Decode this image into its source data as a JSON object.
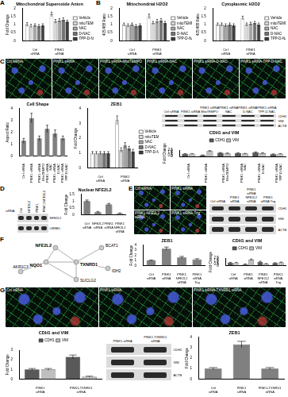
{
  "panel_letters": [
    "A",
    "B",
    "C",
    "D",
    "E",
    "F",
    "G"
  ],
  "chart_data": [
    {
      "type": "bar",
      "title": "Mitochondrial Superoxide Anion",
      "y_label": "Fold Change",
      "categories": [
        "Ctrl siRNA",
        "PINK1 siRNA"
      ],
      "series": [
        {
          "name": "Vehicle",
          "color": "#ffffff",
          "values": [
            1.0,
            1.62
          ],
          "errors": [
            0.12,
            0.15
          ]
        },
        {
          "name": "mitoTEMPO",
          "color": "#d9d9d9",
          "values": [
            0.92,
            1.2
          ],
          "errors": [
            0.1,
            0.12
          ]
        },
        {
          "name": "NAC",
          "color": "#a6a6a6",
          "values": [
            0.95,
            1.25
          ],
          "errors": [
            0.1,
            0.12
          ]
        },
        {
          "name": "D-NAC",
          "color": "#737373",
          "values": [
            0.9,
            1.3
          ],
          "errors": [
            0.1,
            0.12
          ]
        },
        {
          "name": "TPP-D-NAC",
          "color": "#404040",
          "values": [
            0.95,
            1.18
          ],
          "errors": [
            0.1,
            0.1
          ]
        }
      ],
      "ylim": [
        0,
        2
      ],
      "yticks": [
        0,
        0.5,
        1,
        1.5,
        2
      ],
      "grid": false,
      "legend": "right"
    },
    {
      "type": "bar",
      "title": "Mitochondrial H2O2",
      "y_label": "405/488 Ratio",
      "categories": [
        "Ctrl siRNA",
        "PINK1 siRNA"
      ],
      "series": [
        {
          "name": "Vehicle",
          "color": "#ffffff",
          "values": [
            1.0,
            1.5
          ],
          "errors": [
            0.1,
            0.15
          ]
        },
        {
          "name": "mitoTEMPO",
          "color": "#d9d9d9",
          "values": [
            0.95,
            1.1
          ],
          "errors": [
            0.1,
            0.1
          ]
        },
        {
          "name": "NAC",
          "color": "#a6a6a6",
          "values": [
            1.0,
            1.2
          ],
          "errors": [
            0.1,
            0.12
          ]
        },
        {
          "name": "D-NAC",
          "color": "#737373",
          "values": [
            0.9,
            1.25
          ],
          "errors": [
            0.1,
            0.12
          ]
        },
        {
          "name": "TPP-D-NAC",
          "color": "#404040",
          "values": [
            0.95,
            1.1
          ],
          "errors": [
            0.1,
            0.1
          ]
        }
      ],
      "ylim": [
        0,
        2
      ],
      "yticks": [
        0,
        0.5,
        1,
        1.5,
        2
      ],
      "grid": false,
      "legend": "right"
    },
    {
      "type": "bar",
      "title": "Cytoplasmic H2O2",
      "y_label": "405/488 Ratio",
      "categories": [
        "Ctrl siRNA",
        "PINK1 siRNA"
      ],
      "series": [
        {
          "name": "Vehicle",
          "color": "#ffffff",
          "values": [
            1.0,
            1.4
          ],
          "errors": [
            0.1,
            0.12
          ]
        },
        {
          "name": "mitoTEMPO",
          "color": "#d9d9d9",
          "values": [
            1.0,
            1.0
          ],
          "errors": [
            0.1,
            0.1
          ]
        },
        {
          "name": "NAC",
          "color": "#a6a6a6",
          "values": [
            0.95,
            1.05
          ],
          "errors": [
            0.1,
            0.1
          ]
        },
        {
          "name": "D-NAC",
          "color": "#737373",
          "values": [
            1.0,
            1.1
          ],
          "errors": [
            0.1,
            0.1
          ]
        },
        {
          "name": "TPP-D-NAC",
          "color": "#404040",
          "values": [
            0.95,
            1.0
          ],
          "errors": [
            0.1,
            0.1
          ]
        }
      ],
      "ylim": [
        0,
        2
      ],
      "yticks": [
        0,
        0.5,
        1,
        1.5,
        2
      ],
      "grid": false,
      "legend": "right"
    },
    {
      "type": "bar",
      "title": "Cell Shape",
      "y_label": "Aspect Ratio",
      "categories": [
        "Ctrl siRNA",
        "PINK1 siRNA",
        "PINK1 siRNA MitoTEMPO",
        "PINK1 siRNA NAC",
        "PINK1 siRNA D-NAC",
        "PINK1 siRNA TPP-D-NAC"
      ],
      "values": [
        1.3,
        3.2,
        1.5,
        2.3,
        1.9,
        1.5
      ],
      "errors": [
        0.2,
        0.4,
        0.2,
        0.3,
        0.3,
        0.2
      ],
      "color": "#808080",
      "ylim": [
        0,
        4
      ],
      "yticks": [
        0,
        1,
        2,
        3,
        4
      ],
      "grid": false
    },
    {
      "type": "bar",
      "title": "ZEB1",
      "y_label": "Fold Change",
      "categories": [
        "Ctrl siRNA",
        "PINK1 siRNA"
      ],
      "series": [
        {
          "name": "Vehicle",
          "color": "#ffffff",
          "values": [
            1.0,
            3.2
          ],
          "errors": [
            0.1,
            0.3
          ]
        },
        {
          "name": "mitoTEMPO",
          "color": "#d9d9d9",
          "values": [
            1.0,
            1.2
          ],
          "errors": [
            0.1,
            0.15
          ]
        },
        {
          "name": "NAC",
          "color": "#a6a6a6",
          "values": [
            1.0,
            1.5
          ],
          "errors": [
            0.1,
            0.2
          ]
        },
        {
          "name": "D-NAC",
          "color": "#737373",
          "values": [
            1.0,
            1.3
          ],
          "errors": [
            0.1,
            0.15
          ]
        },
        {
          "name": "TPP-D-NAC",
          "color": "#404040",
          "values": [
            1.0,
            1.1
          ],
          "errors": [
            0.1,
            0.15
          ]
        }
      ],
      "ylim": [
        0,
        4
      ],
      "yticks": [
        0,
        1,
        2,
        3,
        4
      ],
      "grid": false,
      "legend": "right"
    },
    {
      "type": "bar",
      "title": "CDH1 and VIM",
      "y_label": "Fold Change",
      "categories": [
        "Ctrl siRNA",
        "PINK1 siRNA",
        "PINK1 siRNA MitoTEMPO",
        "PINK1 siRNA NAC",
        "PINK1 siRNA D-NAC",
        "PINK1 siRNA TPP-D-NAC"
      ],
      "series": [
        {
          "name": "CDH1",
          "color": "#595959",
          "values": [
            1.0,
            0.5,
            1.4,
            1.3,
            1.6,
            0.9
          ],
          "errors": [
            0.1,
            0.1,
            0.15,
            0.15,
            0.2,
            0.1
          ]
        },
        {
          "name": "VIM",
          "color": "#bfbfbf",
          "values": [
            1.0,
            2.1,
            1.2,
            1.1,
            1.3,
            1.0
          ],
          "errors": [
            0.1,
            0.2,
            0.15,
            0.1,
            0.15,
            0.1
          ]
        }
      ],
      "ylim": [
        0,
        2.5
      ],
      "yticks": [
        0,
        0.5,
        1,
        1.5,
        2,
        2.5
      ],
      "grid": false,
      "legend": "top"
    },
    {
      "type": "bar",
      "title": "Nuclear NFE2L2",
      "y_label": "Fold Change",
      "categories": [
        "Ctrl siRNA",
        "NFE2L2 siRNA",
        "PINK1 siRNA",
        "PINK1 NFE2L2 siRNA"
      ],
      "values": [
        1.0,
        0.2,
        0.75,
        0.1
      ],
      "errors": [
        0.08,
        0.05,
        0.08,
        0.04
      ],
      "color": "#808080",
      "ylim": [
        0,
        1.5
      ],
      "yticks": [
        0,
        0.5,
        1,
        1.5
      ],
      "grid": false
    },
    {
      "type": "bar",
      "title": "ZEB1",
      "y_label": "Fold Change",
      "categories": [
        "Ctrl siRNA",
        "PINK1 siRNA",
        "PINK1 NFE2L2 siRNA",
        "PINK1 siRNA Trig"
      ],
      "values": [
        1.0,
        3.3,
        1.6,
        1.2
      ],
      "errors": [
        0.1,
        0.3,
        0.2,
        0.15
      ],
      "color": "#808080",
      "ylim": [
        0,
        4
      ],
      "yticks": [
        0,
        1,
        2,
        3,
        4
      ],
      "grid": false
    },
    {
      "type": "bar",
      "title": "CDH1 and VIM",
      "y_label": "Fold Change",
      "categories": [
        "Ctrl siRNA",
        "PINK1 siRNA",
        "PINK1 NFE2L2 siRNA",
        "PINK1 siRNA Trig"
      ],
      "series": [
        {
          "name": "CDH1",
          "color": "#595959",
          "values": [
            1.0,
            0.5,
            1.3,
            0.9
          ],
          "errors": [
            0.1,
            0.1,
            0.15,
            0.1
          ]
        },
        {
          "name": "VIM",
          "color": "#bfbfbf",
          "values": [
            1.0,
            2.0,
            0.6,
            1.1
          ],
          "errors": [
            0.1,
            0.2,
            0.1,
            0.1
          ]
        }
      ],
      "ylim": [
        0,
        2.5
      ],
      "yticks": [
        0,
        0.5,
        1,
        1.5,
        2,
        2.5
      ],
      "grid": false,
      "legend": "top"
    },
    {
      "type": "bar",
      "title": "CDH1 and VIM",
      "y_label": "Fold Change",
      "categories": [
        "PINK1 siRNA",
        "PINK1-TXNRD1 siRNA"
      ],
      "series": [
        {
          "name": "CDH1",
          "color": "#595959",
          "values": [
            1.0,
            2.3
          ],
          "errors": [
            0.1,
            0.2
          ]
        },
        {
          "name": "VIM",
          "color": "#bfbfbf",
          "values": [
            1.0,
            0.25
          ],
          "errors": [
            0.1,
            0.05
          ]
        }
      ],
      "ylim": [
        0,
        3
      ],
      "yticks": [
        0,
        1,
        2,
        3
      ],
      "grid": false,
      "legend": "top"
    },
    {
      "type": "bar",
      "title": "ZEB1",
      "y_label": "Fold Change",
      "categories": [
        "Ctrl siRNA",
        "PINK1 siRNA",
        "PINK1-TXNRD1 siRNA"
      ],
      "values": [
        1.0,
        3.3,
        1.0
      ],
      "errors": [
        0.1,
        0.3,
        0.1
      ],
      "color": "#808080",
      "ylim": [
        0,
        4
      ],
      "yticks": [
        0,
        1,
        2,
        3,
        4
      ],
      "grid": false
    }
  ],
  "micrographs": [
    [
      "Ctrl siRNA",
      "PINK1 siRNA",
      "PINK1 siRNA-MitoTEMPO",
      "PINK1 siRNA-NAC",
      "PINK1 siRNA-D-NAC",
      "PINK1 siRNA-TPP-D-NAC"
    ],
    [
      "Ctrl siRNA",
      "PINK1 siRNA",
      "PINK1-NFE2L2 siRNA",
      "PINK1 siRNA-Trig"
    ],
    [
      "Ctrl siRNA",
      "PINK1 siRNA",
      "PINK1 siRNA-TXNRD1 siRNA"
    ]
  ],
  "blots": [
    {
      "lanes": [
        "Ctrl siRNA",
        "PINK1 siRNA",
        "PINK1 siRNA MitoTEMPO",
        "PINK1 siRNA NAC",
        "PINK1 siRNA D-NAC",
        "PINK1 siRNA TPP-D-NAC"
      ],
      "rows": [
        "CDH1",
        "VIM",
        "ACTB"
      ]
    },
    {
      "header": "siRNA",
      "lanes": [
        "Ctrl",
        "NFE2L2",
        "PINK1",
        "PINK1 NFE2L2"
      ],
      "rows": [
        "NFE2L2",
        "LMNB1"
      ]
    },
    {
      "lanes": [
        "Ctrl siRNA",
        "PINK1 siRNA",
        "PINK1 siRNA NFE2L2 siRNA",
        "PINK1 siRNA Trig"
      ],
      "rows": [
        "CDH1",
        "VIM",
        "ACTB"
      ]
    },
    {
      "lanes": [
        "PINK1 siRNA",
        "PINK1-TXNRD1 siRNA"
      ],
      "rows": [
        "CDH1",
        "VIM",
        "ACTB"
      ]
    }
  ],
  "network": {
    "nodes": [
      "NFE2L2",
      "NQO1",
      "TXNRD1",
      "BCAT1",
      "IDH2",
      "AKR1C3",
      "SUCLG2"
    ],
    "highlighted": [
      "NFE2L2",
      "NQO1",
      "TXNRD1"
    ],
    "edges": [
      [
        0,
        1
      ],
      [
        0,
        2
      ],
      [
        1,
        2
      ],
      [
        1,
        5
      ],
      [
        2,
        3
      ],
      [
        2,
        4
      ],
      [
        2,
        6
      ],
      [
        1,
        6
      ]
    ]
  }
}
